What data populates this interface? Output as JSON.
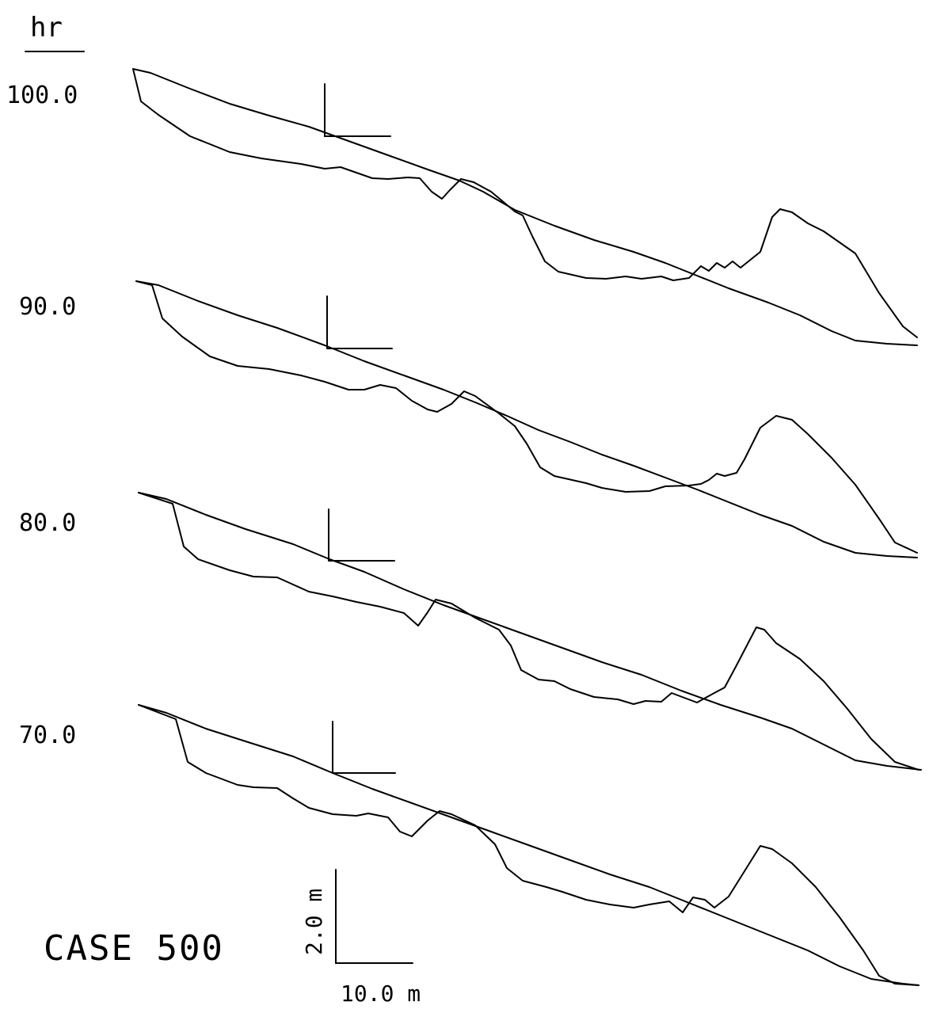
{
  "header": {
    "time_unit": "hr"
  },
  "profiles": [
    {
      "time_label": "100.0"
    },
    {
      "time_label": "90.0"
    },
    {
      "time_label": "80.0"
    },
    {
      "time_label": "70.0"
    }
  ],
  "case_label": "CASE 500",
  "scale_bar": {
    "vertical_label": "2.0 m",
    "horizontal_label": "10.0 m"
  }
}
